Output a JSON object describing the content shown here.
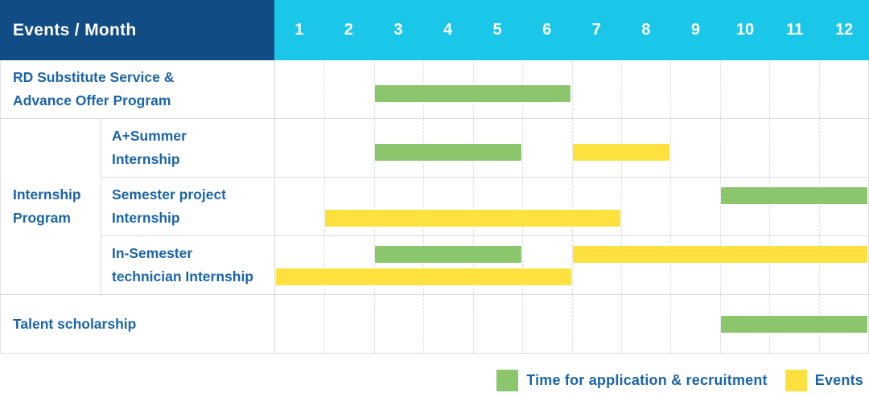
{
  "colors": {
    "navy": "#114C85",
    "cyan": "#1BC7E8",
    "green": "#8BC56C",
    "yellow": "#FDE23F",
    "label_blue": "#1B64A8"
  },
  "table": {
    "header": {
      "label": "Events / Month",
      "months": [
        "1",
        "2",
        "3",
        "4",
        "5",
        "6",
        "7",
        "8",
        "9",
        "10",
        "11",
        "12"
      ]
    },
    "group": {
      "label_lines": [
        "Internship",
        "Program"
      ]
    },
    "rows": [
      {
        "label_lines": [
          "RD Substitute Service &",
          "Advance Offer Program"
        ],
        "bars": [
          {
            "color": "green",
            "start": 3,
            "end": 6,
            "lane": "mid"
          }
        ]
      },
      {
        "label_lines": [
          "A+Summer",
          "Internship"
        ],
        "bars": [
          {
            "color": "green",
            "start": 3,
            "end": 5,
            "lane": "mid"
          },
          {
            "color": "yellow",
            "start": 7,
            "end": 8,
            "lane": "mid"
          }
        ]
      },
      {
        "label_lines": [
          "Semester project",
          "Internship"
        ],
        "bars": [
          {
            "color": "green",
            "start": 10,
            "end": 12,
            "lane": "top"
          },
          {
            "color": "yellow",
            "start": 2,
            "end": 7,
            "lane": "bottom"
          }
        ]
      },
      {
        "label_lines": [
          "In-Semester",
          "technician Internship"
        ],
        "bars": [
          {
            "color": "green",
            "start": 3,
            "end": 5,
            "lane": "top"
          },
          {
            "color": "yellow",
            "start": 7,
            "end": 12,
            "lane": "top"
          },
          {
            "color": "yellow",
            "start": 1,
            "end": 6,
            "lane": "bottom"
          }
        ]
      },
      {
        "label_lines": [
          "Talent scholarship"
        ],
        "bars": [
          {
            "color": "green",
            "start": 10,
            "end": 12,
            "lane": "center"
          }
        ]
      }
    ]
  },
  "legend": {
    "items": [
      {
        "color": "green",
        "label": "Time for application & recruitment"
      },
      {
        "color": "yellow",
        "label": "Events"
      }
    ]
  },
  "chart_data": {
    "type": "bar",
    "variant": "gantt-schedule",
    "title": "Events / Month",
    "x_categories": [
      1,
      2,
      3,
      4,
      5,
      6,
      7,
      8,
      9,
      10,
      11,
      12
    ],
    "xlabel": "Month",
    "legend_position": "bottom-right",
    "series_legend": [
      "Time for application & recruitment",
      "Events"
    ],
    "rows": [
      {
        "event": "RD Substitute Service & Advance Offer Program",
        "group": null,
        "spans": [
          {
            "series": "Time for application & recruitment",
            "start_month": 3,
            "end_month": 6
          }
        ]
      },
      {
        "event": "A+Summer Internship",
        "group": "Internship Program",
        "spans": [
          {
            "series": "Time for application & recruitment",
            "start_month": 3,
            "end_month": 5
          },
          {
            "series": "Events",
            "start_month": 7,
            "end_month": 8
          }
        ]
      },
      {
        "event": "Semester project Internship",
        "group": "Internship Program",
        "spans": [
          {
            "series": "Time for application & recruitment",
            "start_month": 10,
            "end_month": 12
          },
          {
            "series": "Events",
            "start_month": 2,
            "end_month": 7
          }
        ]
      },
      {
        "event": "In-Semester technician Internship",
        "group": "Internship Program",
        "spans": [
          {
            "series": "Time for application & recruitment",
            "start_month": 3,
            "end_month": 5
          },
          {
            "series": "Events",
            "start_month": 7,
            "end_month": 12
          },
          {
            "series": "Events",
            "start_month": 1,
            "end_month": 6
          }
        ]
      },
      {
        "event": "Talent scholarship",
        "group": null,
        "spans": [
          {
            "series": "Time for application & recruitment",
            "start_month": 10,
            "end_month": 12
          }
        ]
      }
    ]
  }
}
